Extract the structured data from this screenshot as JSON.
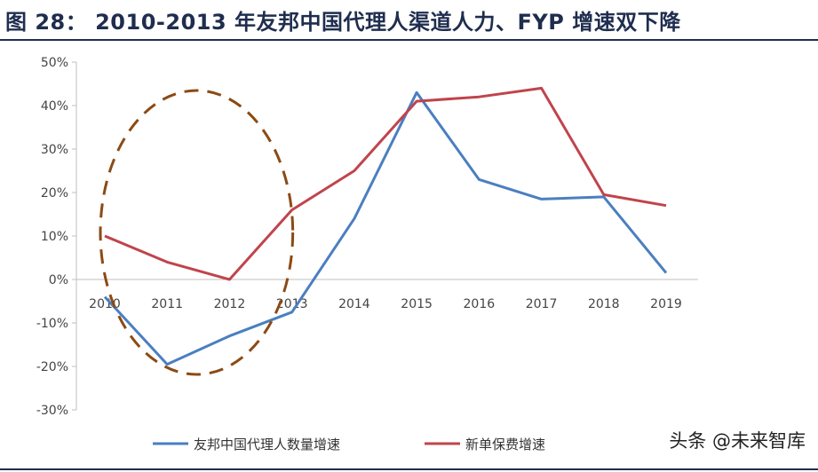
{
  "title": "图 28： 2010-2013 年友邦中国代理人渠道人力、FYP 增速双下降",
  "watermark": "头条 @未来智库",
  "colors": {
    "series_agents": "#4a7fc1",
    "series_fyp": "#c0444c",
    "highlight_ellipse": "#8b4a14",
    "title": "#1f2d4e"
  },
  "chart_data": {
    "type": "line",
    "x": [
      "2010",
      "2011",
      "2012",
      "2013",
      "2014",
      "2015",
      "2016",
      "2017",
      "2018",
      "2019"
    ],
    "ylim": [
      -30,
      50
    ],
    "yticks": [
      "-30%",
      "-20%",
      "-10%",
      "0%",
      "10%",
      "20%",
      "30%",
      "40%",
      "50%"
    ],
    "ytick_values": [
      -30,
      -20,
      -10,
      0,
      10,
      20,
      30,
      40,
      50
    ],
    "grid": false,
    "legend_position": "bottom",
    "series": [
      {
        "name": "友邦中国代理人数量增速",
        "values": [
          -4,
          -19.5,
          -13,
          -7.5,
          14,
          43,
          23,
          18.5,
          19,
          1.5
        ],
        "color": "#4a7fc1"
      },
      {
        "name": "新单保费增速",
        "values": [
          10,
          4,
          0,
          16,
          25,
          41,
          42,
          44,
          19.5,
          17
        ],
        "color": "#c0444c"
      }
    ],
    "annotations": [
      {
        "type": "dashed-ellipse",
        "x_range": [
          "2010",
          "2013"
        ]
      }
    ]
  }
}
